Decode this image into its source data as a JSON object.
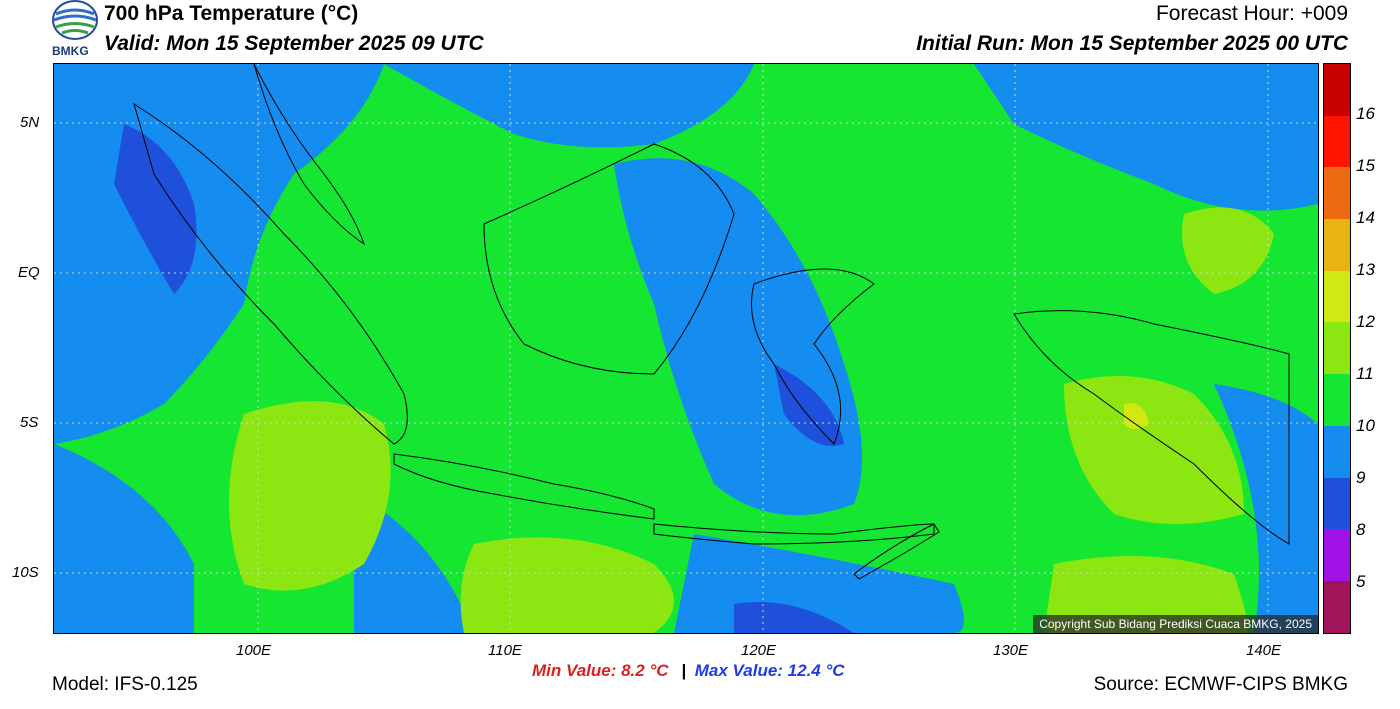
{
  "header": {
    "logo_text": "BMKG",
    "title": "700 hPa Temperature (°C)",
    "valid": "Valid: Mon 15 September 2025 09 UTC",
    "forecast_hour": "Forecast Hour: +009",
    "initial_run": "Initial Run: Mon 15 September 2025 00 UTC"
  },
  "map": {
    "lat_labels": [
      "5N",
      "EQ",
      "5S",
      "10S"
    ],
    "lon_labels": [
      "100E",
      "110E",
      "120E",
      "130E",
      "140E"
    ],
    "copyright": "Copyright Sub Bidang Prediksi Cuaca BMKG, 2025"
  },
  "legend": {
    "labels": [
      "16",
      "15",
      "14",
      "13",
      "12",
      "11",
      "10",
      "9",
      "8",
      "5"
    ],
    "colors": [
      "#c80000",
      "#ff1400",
      "#ee6a10",
      "#e8b412",
      "#d2e812",
      "#8ce612",
      "#14e632",
      "#148cf0",
      "#1e50dc",
      "#a012e6",
      "#a0145a"
    ]
  },
  "footer": {
    "model": "Model: IFS-0.125",
    "min_value": "Min Value: 8.2 °C",
    "separator": "|",
    "max_value": "Max Value: 12.4 °C",
    "source": "Source: ECMWF-CIPS BMKG"
  }
}
